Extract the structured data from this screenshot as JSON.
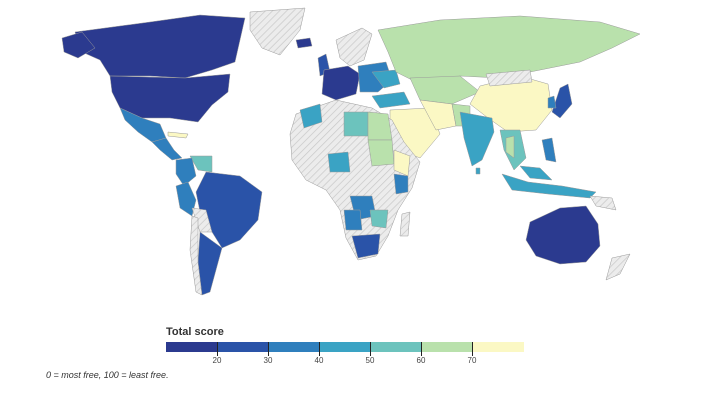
{
  "legend": {
    "title": "Total score",
    "colors": [
      "#2b3a8f",
      "#2a53a8",
      "#2f7fbd",
      "#3aa3c4",
      "#6cc3bd",
      "#b9e1ac",
      "#fbf8c4"
    ],
    "ticks": [
      "20",
      "30",
      "40",
      "50",
      "60",
      "70"
    ]
  },
  "note": "0 = most free, 100 = least free.",
  "palette": {
    "ocean": "#ffffff",
    "no_data": "#e5e5e5",
    "border": "#aaaaaa"
  }
}
